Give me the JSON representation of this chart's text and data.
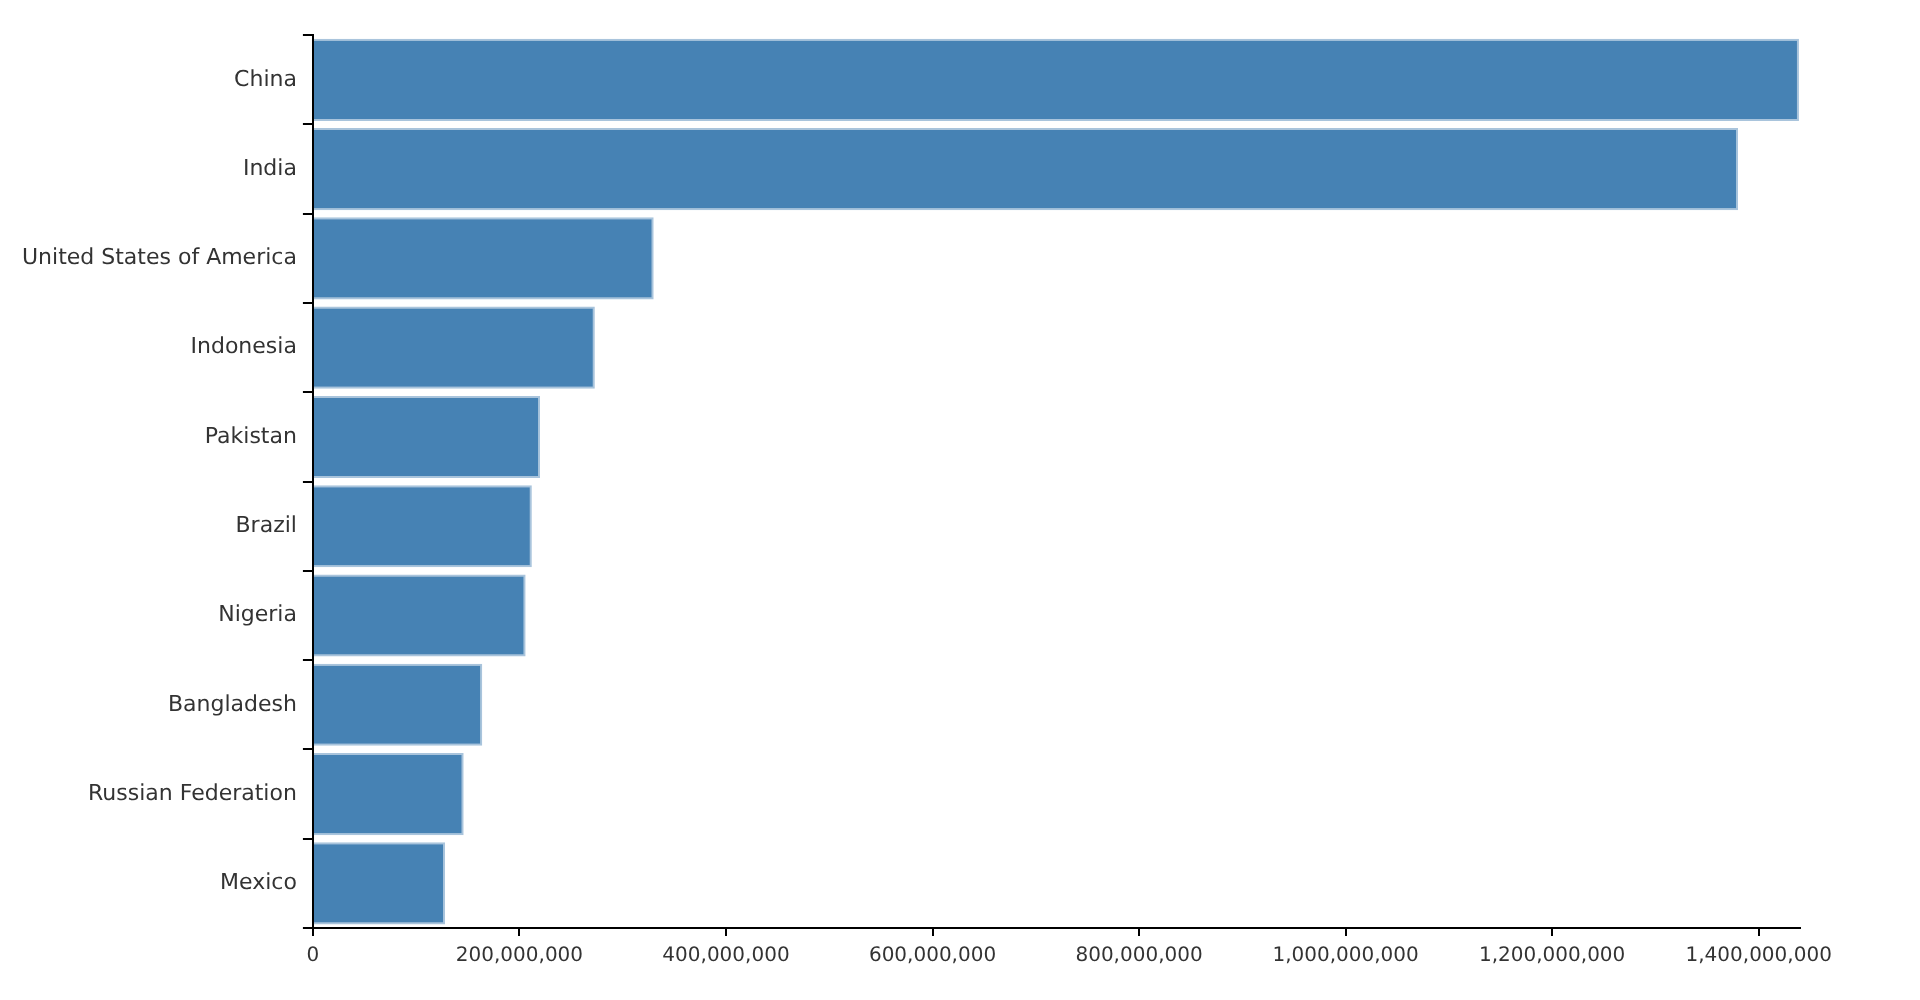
{
  "chart_data": {
    "type": "bar",
    "orientation": "horizontal",
    "categories": [
      "China",
      "India",
      "United States of America",
      "Indonesia",
      "Pakistan",
      "Brazil",
      "Nigeria",
      "Bangladesh",
      "Russian Federation",
      "Mexico"
    ],
    "values": [
      1439000000,
      1380000000,
      330000000,
      273000000,
      220000000,
      212000000,
      206000000,
      164000000,
      146000000,
      128000000
    ],
    "color": "#4682b4",
    "xlim": [
      0,
      1440000000
    ],
    "xticks": [
      {
        "value": 0,
        "label": "0"
      },
      {
        "value": 200000000,
        "label": "200,000,000"
      },
      {
        "value": 400000000,
        "label": "400,000,000"
      },
      {
        "value": 600000000,
        "label": "600,000,000"
      },
      {
        "value": 800000000,
        "label": "800,000,000"
      },
      {
        "value": 1000000000,
        "label": "1,000,000,000"
      },
      {
        "value": 1200000000,
        "label": "1,200,000,000"
      },
      {
        "value": 1400000000,
        "label": "1,400,000,000"
      }
    ],
    "grid": false,
    "legend": false
  }
}
